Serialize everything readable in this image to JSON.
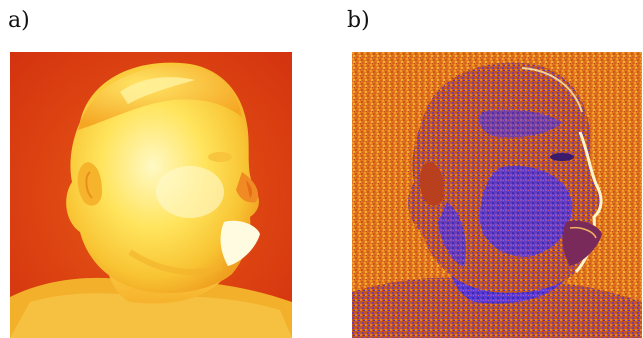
{
  "panels": [
    {
      "label": "a)",
      "description_colormap": "hot",
      "colors": {
        "background": "#d93a12",
        "mid": "#f4a41f",
        "high": "#ffe45c",
        "peak": "#fff6b0"
      }
    },
    {
      "label": "b)",
      "description_colormap": "hot-with-purple-lows",
      "colors": {
        "background": "#e27a1c",
        "low": "#5b3ad6",
        "lowest": "#3a2ab8",
        "edge": "#fff4c8"
      }
    }
  ]
}
